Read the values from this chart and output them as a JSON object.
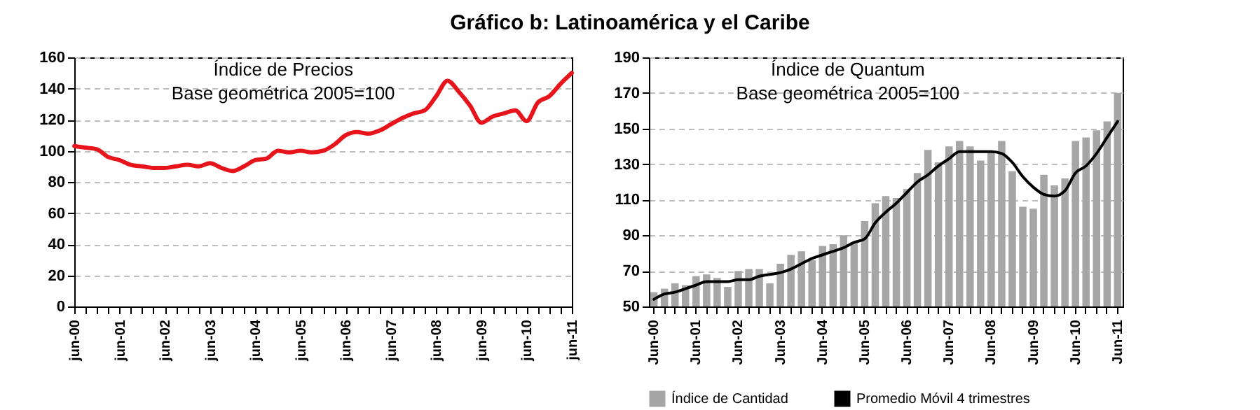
{
  "chart_data": [
    {
      "type": "line",
      "title": "Índice de Precios",
      "subtitle": "Base geométrica 2005=100",
      "annotations": [
        "Gráfico b: Latinoamérica y el Caribe"
      ],
      "categories": [
        "jun-00",
        null,
        null,
        null,
        "jun-01",
        null,
        null,
        null,
        "jun-02",
        null,
        null,
        null,
        "jun-03",
        null,
        null,
        null,
        "jun-04",
        null,
        null,
        null,
        "jun-05",
        null,
        null,
        null,
        "jun-06",
        null,
        null,
        null,
        "jun-07",
        null,
        null,
        null,
        "jun-08",
        null,
        null,
        null,
        "jun-09",
        null,
        null,
        null,
        "jun-10",
        null,
        null,
        null,
        "jun-11"
      ],
      "series": [
        {
          "color": "#e8141b",
          "values": [
            103,
            102,
            101,
            96,
            94,
            91,
            90,
            89,
            89,
            90,
            91,
            90,
            92,
            89,
            87,
            90,
            94,
            95,
            100,
            99,
            100,
            99,
            100,
            104,
            110,
            112,
            111,
            113,
            117,
            121,
            124,
            126,
            135,
            145,
            138,
            129,
            118,
            122,
            124,
            126,
            119,
            131,
            135,
            143,
            150
          ]
        }
      ],
      "ylim": [
        0,
        160
      ],
      "yticks": [
        0,
        20,
        40,
        60,
        80,
        100,
        120,
        140,
        160
      ],
      "grid": "y",
      "legend": false
    },
    {
      "type": "bar",
      "title": "Índice de Quantum",
      "subtitle": "Base geométrica 2005=100",
      "categories": [
        "Jun-00",
        null,
        null,
        null,
        "Jun-01",
        null,
        null,
        null,
        "Jun-02",
        null,
        null,
        null,
        "Jun-03",
        null,
        null,
        null,
        "Jun-04",
        null,
        null,
        null,
        "Jun-05",
        null,
        null,
        null,
        "Jun-06",
        null,
        null,
        null,
        "Jun-07",
        null,
        null,
        null,
        "Jun-08",
        null,
        null,
        null,
        "Jun-09",
        null,
        null,
        null,
        "Jun-10",
        null,
        null,
        null,
        "Jun-11"
      ],
      "series": [
        {
          "name": "Índice de Cantidad",
          "color": "#a6a6a6",
          "values": [
            58,
            60,
            63,
            62,
            67,
            68,
            66,
            61,
            70,
            71,
            71,
            63,
            74,
            79,
            81,
            76,
            84,
            85,
            90,
            86,
            98,
            108,
            112,
            111,
            116,
            125,
            138,
            131,
            140,
            143,
            140,
            132,
            137,
            143,
            126,
            106,
            105,
            124,
            118,
            122,
            143,
            145,
            149,
            154,
            170
          ]
        },
        {
          "name": "Promedio Móvil 4 trimestres",
          "type": "line",
          "color": "#000000",
          "values": [
            54,
            57,
            58,
            60,
            62,
            64,
            64,
            64,
            65,
            65,
            67,
            68,
            69,
            71,
            74,
            77,
            79,
            81,
            83,
            86,
            88,
            97,
            103,
            108,
            114,
            120,
            124,
            129,
            133,
            137,
            137,
            137,
            137,
            136,
            131,
            123,
            117,
            113,
            112,
            115,
            125,
            129,
            136,
            145,
            154
          ]
        }
      ],
      "ylim": [
        50,
        190
      ],
      "yticks": [
        50,
        70,
        90,
        110,
        130,
        150,
        170,
        190
      ],
      "grid": "y",
      "legend": "bottom"
    }
  ]
}
